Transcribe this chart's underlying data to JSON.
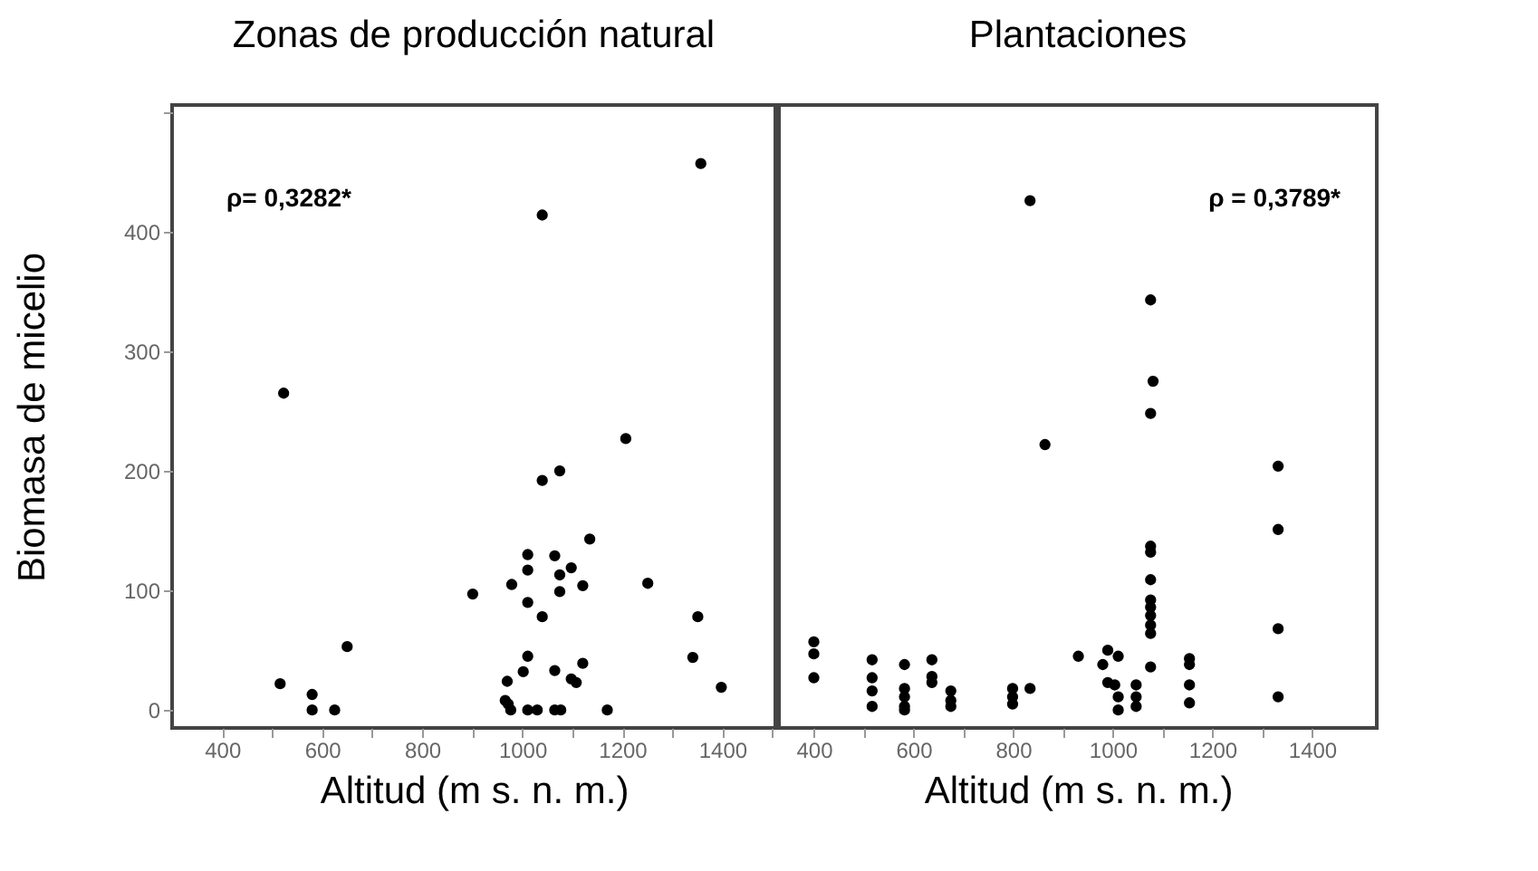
{
  "chart_data": [
    {
      "type": "scatter",
      "title": "Zonas de producción natural",
      "xlabel": "Altitud (m s. n. m.)",
      "ylabel": "Biomasa de micelio",
      "annotations": [
        "ρ= 0,3282*"
      ],
      "marker": "circle",
      "grid": false,
      "xlim": [
        300,
        1506
      ],
      "ylim": [
        -15,
        506
      ],
      "xticks": [
        400,
        {
          "value": 500,
          "label": null
        },
        600,
        {
          "value": 700,
          "label": null
        },
        800,
        {
          "value": 900,
          "label": null
        },
        1000,
        {
          "value": 1100,
          "label": null
        },
        1200,
        {
          "value": 1300,
          "label": null
        },
        1400,
        {
          "value": 1500,
          "label": null
        }
      ],
      "yticks": [
        0,
        100,
        200,
        300,
        400,
        {
          "value": 500,
          "label": null
        }
      ],
      "x": [
        1357,
        1040,
        523,
        1207,
        1075,
        1040,
        1135,
        1011,
        1065,
        1011,
        1098,
        1075,
        979,
        1121,
        1251,
        901,
        1075,
        1011,
        1040,
        1351,
        650,
        1011,
        1341,
        1121,
        1065,
        1002,
        1098,
        1108,
        970,
        516,
        1398,
        580,
        966,
        972,
        580,
        625,
        977,
        1011,
        1030,
        1065,
        1077,
        1170
      ],
      "series": [
        {
          "color": "#000000",
          "values": [
            457,
            414,
            265,
            227,
            200,
            192,
            143,
            130,
            129,
            117,
            119,
            113,
            105,
            104,
            106,
            97,
            99,
            90,
            78,
            78,
            53,
            45,
            44,
            39,
            33,
            32,
            26,
            23,
            24,
            22,
            19,
            13,
            8,
            5,
            0,
            0,
            0,
            0,
            0,
            0,
            0,
            0
          ]
        }
      ]
    },
    {
      "type": "scatter",
      "title": "Plantaciones",
      "xlabel": "Altitud (m s. n. m.)",
      "annotations": [
        "ρ = 0,3789*"
      ],
      "marker": "circle",
      "grid": false,
      "tick_labels": "x",
      "xlim": [
        330,
        1530
      ],
      "ylim": [
        -15,
        506
      ],
      "yticks": [
        0,
        100,
        200,
        300,
        400
      ],
      "xticks": [
        400,
        {
          "value": 500,
          "label": null
        },
        600,
        {
          "value": 700,
          "label": null
        },
        800,
        {
          "value": 900,
          "label": null
        },
        1000,
        {
          "value": 1100,
          "label": null
        },
        1200,
        {
          "value": 1300,
          "label": null
        },
        1400
      ],
      "x": [
        834,
        1076,
        1081,
        1076,
        864,
        1332,
        1332,
        1332,
        1332,
        400,
        400,
        400,
        517,
        517,
        517,
        517,
        582,
        582,
        582,
        582,
        582,
        637,
        637,
        637,
        675,
        675,
        675,
        799,
        799,
        799,
        834,
        931,
        990,
        980,
        1011,
        990,
        1004,
        1011,
        1011,
        1047,
        1047,
        1047,
        1076,
        1076,
        1076,
        1076,
        1076,
        1076,
        1076,
        1076,
        1076,
        1154,
        1154,
        1154,
        1154
      ],
      "series": [
        {
          "color": "#000000",
          "values": [
            426,
            343,
            275,
            248,
            222,
            204,
            151,
            68,
            11,
            57,
            47,
            27,
            42,
            27,
            16,
            3,
            38,
            18,
            11,
            3,
            0,
            42,
            28,
            23,
            16,
            8,
            3,
            18,
            11,
            5,
            18,
            45,
            50,
            38,
            45,
            23,
            21,
            11,
            0,
            21,
            11,
            3,
            36,
            137,
            132,
            109,
            92,
            86,
            79,
            71,
            64,
            43,
            38,
            21,
            6
          ]
        }
      ]
    }
  ]
}
